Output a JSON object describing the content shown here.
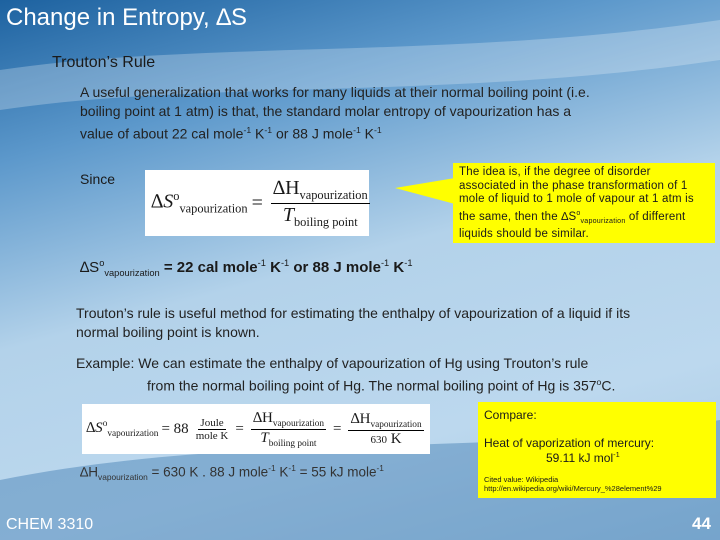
{
  "title": "Change in Entropy, ∆S",
  "subtitle": "Trouton’s Rule",
  "intro": [
    "A useful generalization that works for many liquids at their normal boiling point (i.e. boiling point at 1 atm) is that, the standard molar entropy of vapourization has a value of about 22 cal mole",
    "-1",
    " K",
    "-1",
    " or 88 J mole",
    "-1",
    " K",
    "-1"
  ],
  "since": "Since",
  "equation1": {
    "lhs": "∆S",
    "lhs_sup": "o",
    "lhs_sub": "vapourization",
    "eq": "=",
    "num": "∆H",
    "num_sub": "vapourization",
    "den": "T",
    "den_sub": "boiling point"
  },
  "callout": [
    "The idea is, if the degree of disorder associated in the phase transformation of 1 mole of liquid to 1 mole of vapour at 1 atm is the same, then the ∆S",
    "o",
    "vapourization",
    " of different liquids should be similar."
  ],
  "result": [
    "∆S",
    "o",
    "vapourization",
    " =  22 cal mole",
    "-1",
    " K",
    "-1",
    " or 88 J mole",
    "-1",
    " K",
    "-1"
  ],
  "para2": "Trouton’s rule is useful method for estimating the enthalpy of vapourization of a liquid if its normal boiling point is known.",
  "example": [
    "Example: We can estimate the enthalpy of vapourization of Hg using Trouton’s rule",
    "from the normal boiling point of Hg. The normal boiling point of Hg is 357",
    "o",
    "C."
  ],
  "equation2": {
    "lhs": "∆S",
    "lhs_sup": "o",
    "lhs_sub": "vapourization",
    "eq1": "= 88",
    "unit_num": "Joule",
    "unit_den": "mole K",
    "eq2": "=",
    "num1": "∆H",
    "num1_sub": "vapourization",
    "den1": "T",
    "den1_sub": "boiling point",
    "eq3": "=",
    "num2": "∆H",
    "num2_sub": "vapourization",
    "den2": "630",
    "den2_unit": "K"
  },
  "calc": [
    "∆H",
    "vapourization",
    " = 630 K . 88 J mole",
    "-1",
    " K",
    "-1",
    " = 55 kJ mole",
    "-1"
  ],
  "compare": {
    "heading": "Compare:",
    "line1": "Heat of vaporization of mercury:",
    "line2": [
      "59.11 kJ mol",
      "-1"
    ],
    "cite": "Cited value: Wikipedia",
    "url": "http://en.wikipedia.org/wiki/Mercury_%28element%29"
  },
  "footer": "CHEM 3310",
  "page": "44"
}
